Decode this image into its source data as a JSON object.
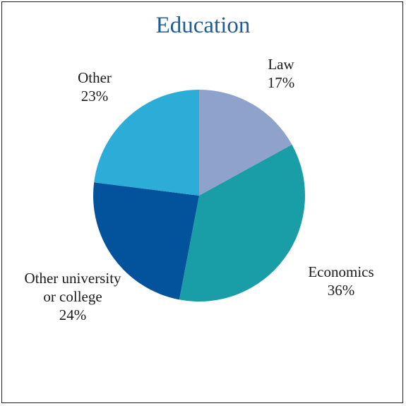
{
  "chart_data": {
    "type": "pie",
    "title": "Education",
    "slices": [
      {
        "label": "Law",
        "label_lines": [
          "Law"
        ],
        "value": 17,
        "display": "17%",
        "color": "#8fa2cb"
      },
      {
        "label": "Economics",
        "label_lines": [
          "Economics"
        ],
        "value": 36,
        "display": "36%",
        "color": "#199ea8"
      },
      {
        "label": "Other university or college",
        "label_lines": [
          "Other university",
          "or college"
        ],
        "value": 24,
        "display": "24%",
        "color": "#02539b"
      },
      {
        "label": "Other",
        "label_lines": [
          "Other"
        ],
        "value": 23,
        "display": "23%",
        "color": "#2badd7"
      }
    ],
    "start_angle_deg": 0,
    "direction": "clockwise",
    "legend": "none",
    "labels": "outside"
  }
}
